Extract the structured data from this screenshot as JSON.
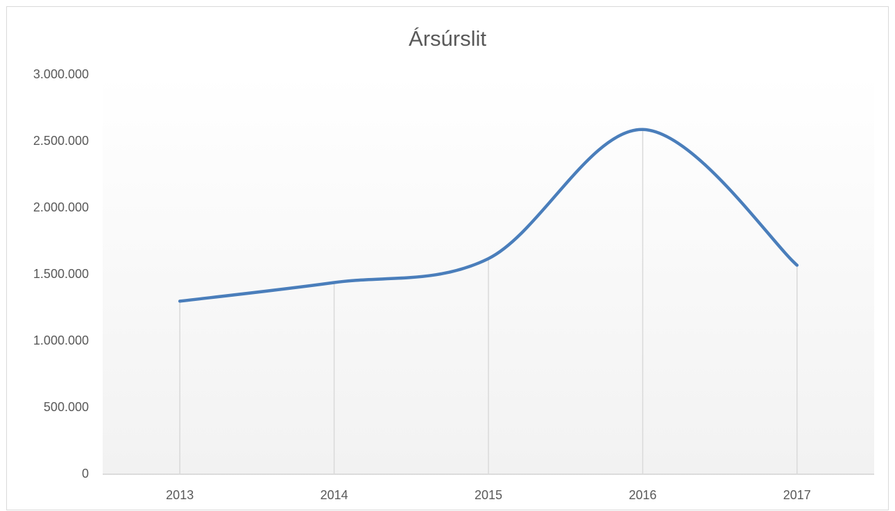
{
  "chart_data": {
    "type": "line",
    "title": "Ársúrslit",
    "categories": [
      "2013",
      "2014",
      "2015",
      "2016",
      "2017"
    ],
    "series": [
      {
        "name": "Ársúrslit",
        "color": "#4a7ebb",
        "values": [
          1300000,
          1440000,
          1620000,
          2590000,
          1570000
        ]
      }
    ],
    "ylim": [
      0,
      3000000
    ],
    "yticks": [
      0,
      {
        "value": 500000,
        "label": "500.000"
      },
      {
        "value": 1000000,
        "label": "1.000.000"
      },
      {
        "value": 1500000,
        "label": "1.500.000"
      },
      {
        "value": 2000000,
        "label": "2.000.000"
      },
      {
        "value": 2500000,
        "label": "2.500.000"
      },
      {
        "value": 3000000,
        "label": "3.000.000"
      }
    ],
    "grid": false,
    "drop_lines": true,
    "smooth": true
  }
}
